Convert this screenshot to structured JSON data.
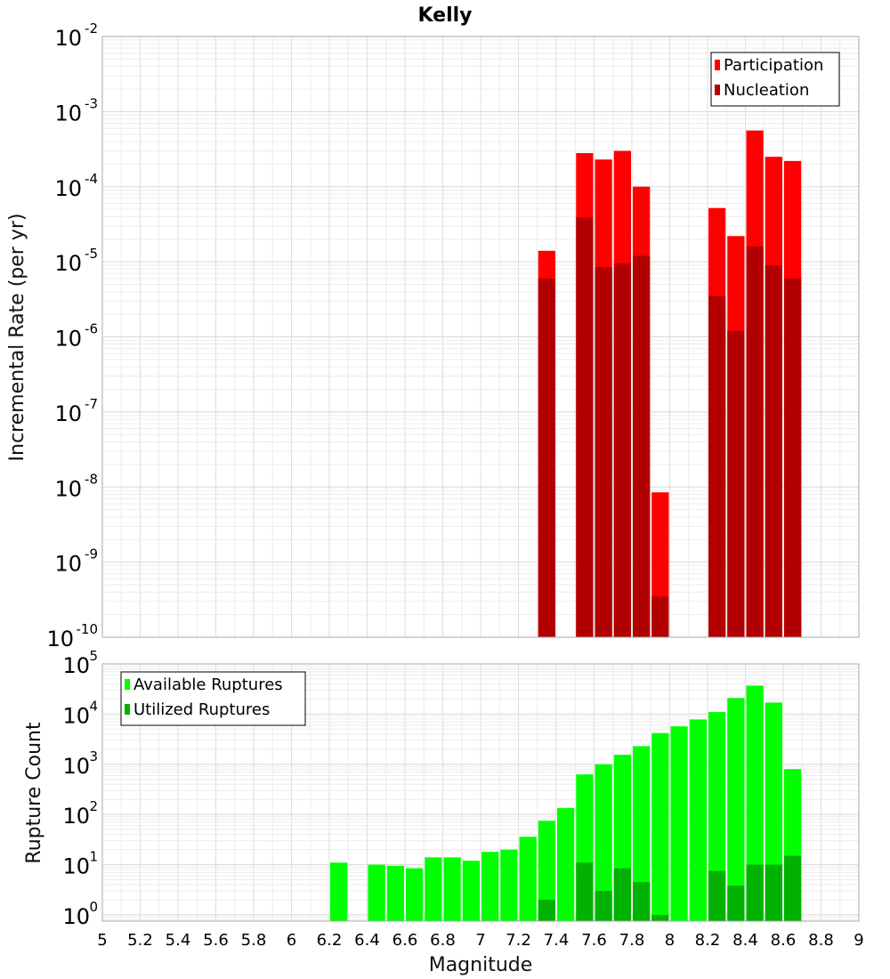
{
  "chart_data": [
    {
      "type": "bar",
      "title": "Kelly",
      "xlabel": "",
      "ylabel": "Incremental Rate (per yr)",
      "yscale": "log",
      "ylim": [
        1e-10,
        0.01
      ],
      "xlim": [
        5,
        9
      ],
      "bar_width": 0.1,
      "legend": "top-right",
      "grid": true,
      "y_tick_exponents": [
        "-2",
        "-3",
        "-4",
        "-5",
        "-6",
        "-7",
        "-8",
        "-9",
        "-10"
      ],
      "series": [
        {
          "name": "Participation",
          "color": "#ff0000",
          "x": [
            7.35,
            7.55,
            7.65,
            7.75,
            7.85,
            7.95,
            8.25,
            8.35,
            8.45,
            8.55,
            8.65
          ],
          "values": [
            1.4e-05,
            0.00028,
            0.00023,
            0.0003,
            0.0001,
            8.5e-09,
            5.2e-05,
            2.2e-05,
            0.00056,
            0.00025,
            0.00022
          ]
        },
        {
          "name": "Nucleation",
          "color": "#b20000",
          "x": [
            7.35,
            7.55,
            7.65,
            7.75,
            7.85,
            7.95,
            8.25,
            8.35,
            8.45,
            8.55,
            8.65
          ],
          "values": [
            6e-06,
            3.9e-05,
            8.5e-06,
            9.5e-06,
            1.2e-05,
            3.5e-10,
            3.5e-06,
            1.2e-06,
            1.6e-05,
            9e-06,
            6e-06
          ]
        }
      ]
    },
    {
      "type": "bar",
      "title": "",
      "xlabel": "Magnitude",
      "ylabel": "Rupture Count",
      "yscale": "log",
      "ylim": [
        0.75,
        100000
      ],
      "xlim": [
        5,
        9
      ],
      "bar_width": 0.1,
      "legend": "top-left",
      "grid": true,
      "x_tick_labels": [
        "5",
        "5.2",
        "5.4",
        "5.6",
        "5.8",
        "6",
        "6.2",
        "6.4",
        "6.6",
        "6.8",
        "7",
        "7.2",
        "7.4",
        "7.6",
        "7.8",
        "8",
        "8.2",
        "8.4",
        "8.6",
        "8.8",
        "9"
      ],
      "y_tick_exponents": [
        "5",
        "4",
        "3",
        "2",
        "1",
        "0"
      ],
      "series": [
        {
          "name": "Available Ruptures",
          "color": "#00ff00",
          "x": [
            6.25,
            6.45,
            6.55,
            6.65,
            6.75,
            6.85,
            6.95,
            7.05,
            7.15,
            7.25,
            7.35,
            7.45,
            7.55,
            7.65,
            7.75,
            7.85,
            7.95,
            8.05,
            8.15,
            8.25,
            8.35,
            8.45,
            8.55,
            8.65
          ],
          "values": [
            11,
            10,
            9.5,
            8.5,
            14,
            14,
            12,
            18,
            20,
            36,
            75,
            135,
            630,
            1000,
            1550,
            2300,
            4200,
            5700,
            7800,
            11000,
            21000,
            37000,
            17000,
            800
          ]
        },
        {
          "name": "Utilized Ruptures",
          "color": "#00b200",
          "x": [
            7.35,
            7.55,
            7.65,
            7.75,
            7.85,
            7.95,
            8.25,
            8.35,
            8.45,
            8.55,
            8.65
          ],
          "values": [
            2,
            11,
            3,
            8.5,
            4.5,
            1,
            7.5,
            3.8,
            10,
            10,
            15
          ]
        }
      ]
    }
  ]
}
